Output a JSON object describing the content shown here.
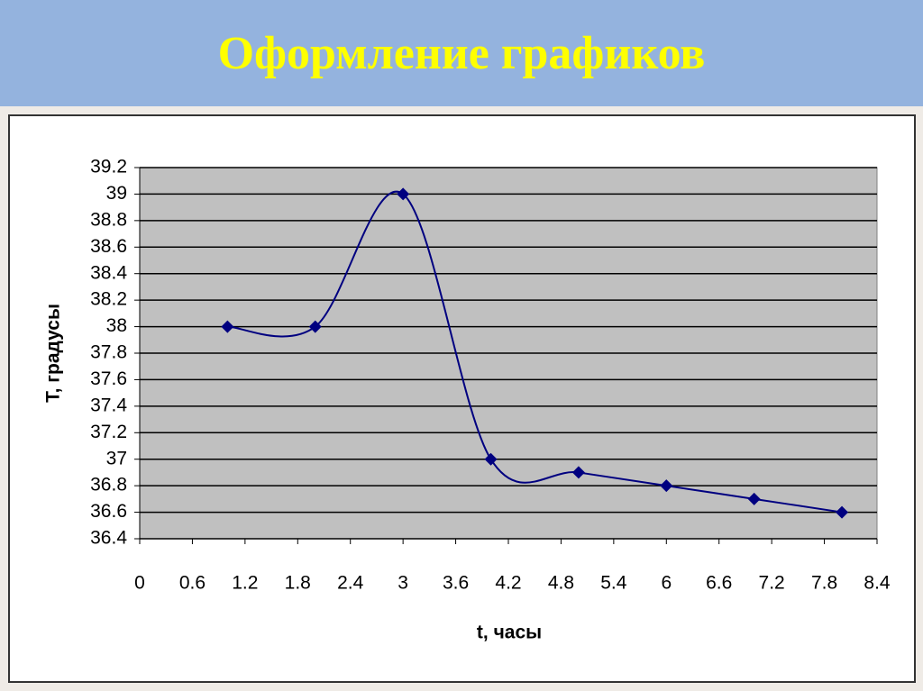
{
  "header": {
    "title": "Оформление графиков"
  },
  "chart_data": {
    "type": "line",
    "x_label": "t, часы",
    "y_label": "T, градусы",
    "x": [
      1,
      2,
      3,
      4,
      5,
      6,
      7,
      8
    ],
    "series": [
      {
        "name": "T",
        "color": "#000080",
        "values": [
          38,
          38,
          39,
          37,
          36.9,
          36.8,
          36.7,
          36.6
        ]
      }
    ],
    "xlim": [
      0,
      8.4
    ],
    "xticks": [
      0,
      0.6,
      1.2,
      1.8,
      2.4,
      3,
      3.6,
      4.2,
      4.8,
      5.4,
      6,
      6.6,
      7.2,
      7.8,
      8.4
    ],
    "ylim": [
      36.4,
      39.2
    ],
    "yticks": [
      36.4,
      36.6,
      36.8,
      37,
      37.2,
      37.4,
      37.6,
      37.8,
      38,
      38.2,
      38.4,
      38.6,
      38.8,
      39,
      39.2
    ],
    "grid": true,
    "smooth": true
  }
}
